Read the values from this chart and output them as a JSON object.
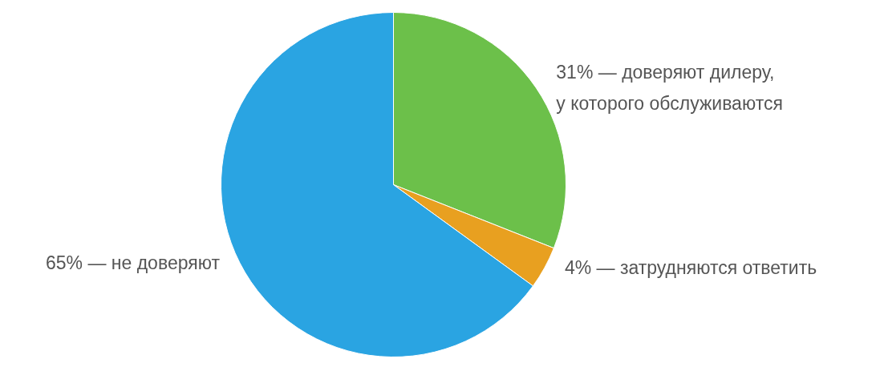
{
  "chart_data": {
    "type": "pie",
    "categories": [
      "31% — доверяют дилеру,\nу которого обслуживаются",
      "4% — затрудняются ответить",
      "65% — не доверяют"
    ],
    "values": [
      31,
      4,
      65
    ],
    "colors": [
      "#6cc04a",
      "#e8a020",
      "#2aa4e2"
    ]
  }
}
